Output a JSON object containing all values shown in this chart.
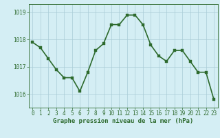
{
  "x": [
    0,
    1,
    2,
    3,
    4,
    5,
    6,
    7,
    8,
    9,
    10,
    11,
    12,
    13,
    14,
    15,
    16,
    17,
    18,
    19,
    20,
    21,
    22,
    23
  ],
  "y": [
    1017.9,
    1017.7,
    1017.3,
    1016.9,
    1016.6,
    1016.6,
    1016.1,
    1016.8,
    1017.6,
    1017.85,
    1018.55,
    1018.55,
    1018.9,
    1018.9,
    1018.55,
    1017.8,
    1017.4,
    1017.2,
    1017.6,
    1017.6,
    1017.2,
    1016.8,
    1016.8,
    1015.8
  ],
  "ylim": [
    1015.5,
    1019.3
  ],
  "yticks": [
    1016,
    1017,
    1018,
    1019
  ],
  "xlim": [
    -0.5,
    23.5
  ],
  "xticks": [
    0,
    1,
    2,
    3,
    4,
    5,
    6,
    7,
    8,
    9,
    10,
    11,
    12,
    13,
    14,
    15,
    16,
    17,
    18,
    19,
    20,
    21,
    22,
    23
  ],
  "line_color": "#2d6a2d",
  "marker_color": "#2d6a2d",
  "bg_color": "#d4eef4",
  "grid_color": "#aaccd6",
  "xlabel": "Graphe pression niveau de la mer (hPa)",
  "xlabel_fontsize": 6.5,
  "tick_fontsize": 5.5,
  "line_width": 1.2,
  "marker_size": 2.5
}
